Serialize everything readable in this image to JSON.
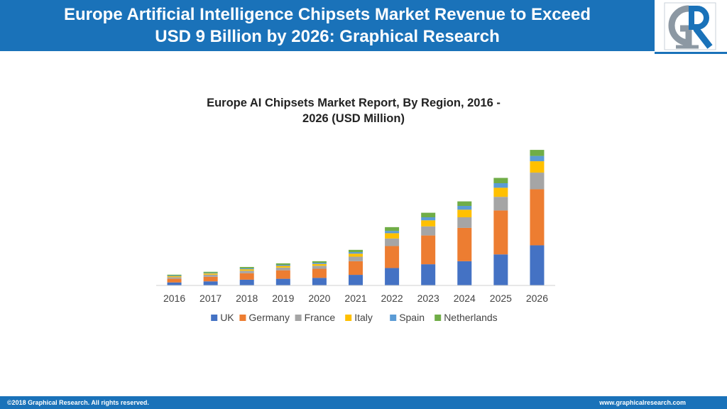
{
  "header": {
    "title_line1": "Europe Artificial Intelligence Chipsets Market Revenue to Exceed",
    "title_line2": "USD 9 Billion by 2026: Graphical Research"
  },
  "logo": {
    "text": "GR",
    "icon": "graphical-research-logo"
  },
  "footer": {
    "copyright": "©2018 Graphical Research. All rights reserved.",
    "website": "www.graphicalresearch.com"
  },
  "colors": {
    "brand": "#1a72b9",
    "UK": "#4472c4",
    "Germany": "#ed7d31",
    "France": "#a5a5a5",
    "Italy": "#ffc000",
    "Spain": "#5b9bd5",
    "Netherlands": "#70ad47"
  },
  "chart_data": {
    "type": "bar",
    "stacked": true,
    "title_line1": "Europe AI Chipsets Market Report, By Region, 2016 -",
    "title_line2": "2026  (USD Million)",
    "categories": [
      "2016",
      "2017",
      "2018",
      "2019",
      "2020",
      "2021",
      "2022",
      "2023",
      "2024",
      "2025",
      "2026"
    ],
    "ylim": [
      0,
      9000
    ],
    "grid": false,
    "legend_position": "bottom",
    "series": [
      {
        "name": "UK",
        "values": [
          200,
          270,
          380,
          440,
          500,
          700,
          1150,
          1400,
          1600,
          2050,
          2650
        ]
      },
      {
        "name": "Germany",
        "values": [
          240,
          300,
          430,
          560,
          600,
          900,
          1450,
          1900,
          2200,
          2900,
          3700
        ]
      },
      {
        "name": "France",
        "values": [
          110,
          140,
          160,
          180,
          200,
          300,
          500,
          600,
          700,
          900,
          1100
        ]
      },
      {
        "name": "Italy",
        "values": [
          60,
          80,
          100,
          110,
          120,
          200,
          350,
          400,
          500,
          600,
          750
        ]
      },
      {
        "name": "Spain",
        "values": [
          40,
          40,
          60,
          70,
          80,
          100,
          150,
          200,
          250,
          300,
          350
        ]
      },
      {
        "name": "Netherlands",
        "values": [
          60,
          70,
          90,
          100,
          100,
          150,
          250,
          300,
          300,
          350,
          400
        ]
      }
    ]
  }
}
